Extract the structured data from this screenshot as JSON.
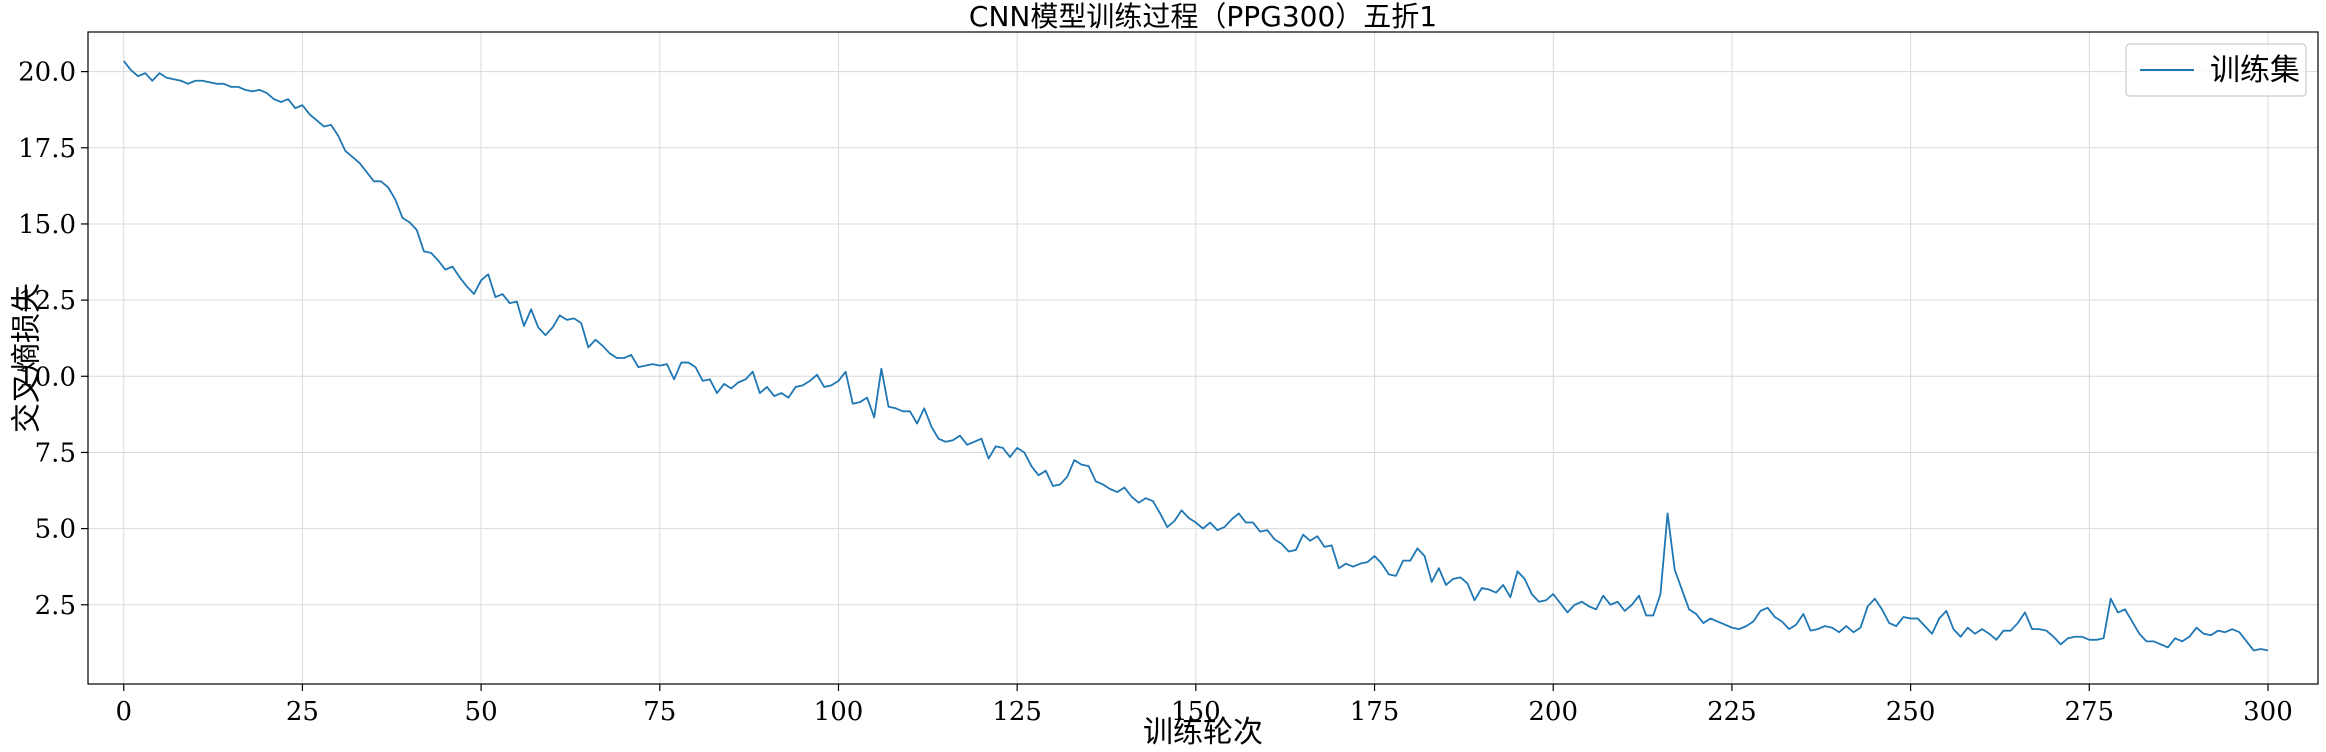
{
  "chart_data": {
    "type": "line",
    "title": "CNN模型训练过程（PPG300）五折1",
    "xlabel": "训练轮次",
    "ylabel": "交叉熵损失",
    "xlim": [
      -5,
      307
    ],
    "ylim": [
      -0.1,
      21.3
    ],
    "xticks": [
      0,
      25,
      50,
      75,
      100,
      125,
      150,
      175,
      200,
      225,
      250,
      275,
      300
    ],
    "yticks": [
      2.5,
      5.0,
      7.5,
      10.0,
      12.5,
      15.0,
      17.5,
      20.0
    ],
    "ytick_labels": [
      "2.5",
      "5.0",
      "7.5",
      "10.0",
      "12.5",
      "15.0",
      "17.5",
      "20.0"
    ],
    "grid": true,
    "legend_position": "top-right",
    "series": [
      {
        "name": "训练集",
        "color": "#1f77b4",
        "x_start": 0,
        "values": [
          20.35,
          20.05,
          19.85,
          19.95,
          19.7,
          19.95,
          19.8,
          19.75,
          19.7,
          19.6,
          19.7,
          19.7,
          19.65,
          19.6,
          19.6,
          19.5,
          19.5,
          19.4,
          19.35,
          19.4,
          19.3,
          19.1,
          19.0,
          19.1,
          18.8,
          18.9,
          18.6,
          18.4,
          18.2,
          18.25,
          17.9,
          17.4,
          17.2,
          17.0,
          16.7,
          16.4,
          16.4,
          16.2,
          15.8,
          15.2,
          15.05,
          14.8,
          14.1,
          14.05,
          13.8,
          13.5,
          13.6,
          13.25,
          12.95,
          12.7,
          13.15,
          13.35,
          12.6,
          12.7,
          12.4,
          12.45,
          11.65,
          12.2,
          11.6,
          11.35,
          11.6,
          12.0,
          11.85,
          11.9,
          11.75,
          10.95,
          11.2,
          11.0,
          10.75,
          10.6,
          10.6,
          10.7,
          10.3,
          10.35,
          10.4,
          10.35,
          10.4,
          9.9,
          10.45,
          10.45,
          10.3,
          9.85,
          9.9,
          9.45,
          9.75,
          9.6,
          9.8,
          9.9,
          10.15,
          9.45,
          9.65,
          9.35,
          9.45,
          9.3,
          9.65,
          9.7,
          9.85,
          10.05,
          9.65,
          9.7,
          9.85,
          10.15,
          9.1,
          9.15,
          9.3,
          8.65,
          10.25,
          9.0,
          8.95,
          8.85,
          8.85,
          8.45,
          8.95,
          8.35,
          7.95,
          7.85,
          7.9,
          8.05,
          7.75,
          7.85,
          7.95,
          7.3,
          7.7,
          7.65,
          7.35,
          7.65,
          7.5,
          7.05,
          6.75,
          6.9,
          6.4,
          6.45,
          6.7,
          7.25,
          7.1,
          7.05,
          6.55,
          6.45,
          6.3,
          6.2,
          6.35,
          6.05,
          5.85,
          6.0,
          5.9,
          5.5,
          5.05,
          5.25,
          5.6,
          5.35,
          5.2,
          5.0,
          5.2,
          4.95,
          5.05,
          5.3,
          5.5,
          5.2,
          5.2,
          4.9,
          4.95,
          4.65,
          4.5,
          4.25,
          4.3,
          4.8,
          4.6,
          4.75,
          4.4,
          4.45,
          3.7,
          3.85,
          3.75,
          3.85,
          3.9,
          4.1,
          3.85,
          3.5,
          3.45,
          3.95,
          3.95,
          4.35,
          4.1,
          3.25,
          3.7,
          3.15,
          3.35,
          3.4,
          3.2,
          2.65,
          3.05,
          3.0,
          2.9,
          3.15,
          2.75,
          3.6,
          3.35,
          2.85,
          2.6,
          2.65,
          2.85,
          2.55,
          2.25,
          2.5,
          2.6,
          2.45,
          2.35,
          2.8,
          2.5,
          2.6,
          2.3,
          2.5,
          2.8,
          2.15,
          2.15,
          2.85,
          5.5,
          3.65,
          3.0,
          2.35,
          2.2,
          1.9,
          2.05,
          1.95,
          1.85,
          1.75,
          1.7,
          1.8,
          1.95,
          2.3,
          2.4,
          2.1,
          1.95,
          1.7,
          1.85,
          2.2,
          1.65,
          1.7,
          1.8,
          1.75,
          1.6,
          1.8,
          1.6,
          1.75,
          2.45,
          2.7,
          2.35,
          1.9,
          1.8,
          2.1,
          2.05,
          2.05,
          1.8,
          1.55,
          2.05,
          2.3,
          1.7,
          1.45,
          1.75,
          1.55,
          1.7,
          1.55,
          1.35,
          1.65,
          1.65,
          1.9,
          2.25,
          1.7,
          1.7,
          1.65,
          1.45,
          1.2,
          1.4,
          1.45,
          1.45,
          1.35,
          1.35,
          1.4,
          2.7,
          2.25,
          2.35,
          1.95,
          1.55,
          1.3,
          1.3,
          1.2,
          1.1,
          1.4,
          1.3,
          1.45,
          1.75,
          1.55,
          1.5,
          1.65,
          1.6,
          1.7,
          1.6,
          1.3,
          1.0,
          1.05,
          1.0
        ]
      }
    ]
  }
}
